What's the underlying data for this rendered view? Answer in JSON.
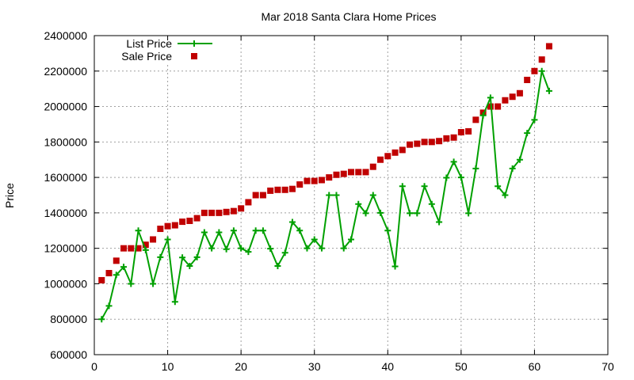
{
  "chart_data": {
    "type": "line",
    "title": "Mar 2018 Santa Clara Home Prices",
    "xlabel": "",
    "ylabel": "Price",
    "xlim": [
      0,
      70
    ],
    "ylim": [
      600000,
      2400000
    ],
    "xticks": [
      0,
      10,
      20,
      30,
      40,
      50,
      60,
      70
    ],
    "yticks": [
      600000,
      800000,
      1000000,
      1200000,
      1400000,
      1600000,
      1800000,
      2000000,
      2200000,
      2400000
    ],
    "grid": true,
    "legend_position": "top-left",
    "series": [
      {
        "name": "List Price",
        "style": "line+cross",
        "color": "#00a000",
        "x": [
          1,
          2,
          3,
          4,
          5,
          6,
          7,
          8,
          9,
          10,
          11,
          12,
          13,
          14,
          15,
          16,
          17,
          18,
          19,
          20,
          21,
          22,
          23,
          24,
          25,
          26,
          27,
          28,
          29,
          30,
          31,
          32,
          33,
          34,
          35,
          36,
          37,
          38,
          39,
          40,
          41,
          42,
          43,
          44,
          45,
          46,
          47,
          48,
          49,
          50,
          51,
          52,
          53,
          54,
          55,
          56,
          57,
          58,
          59,
          60,
          61,
          62
        ],
        "y": [
          800000,
          875000,
          1050000,
          1095000,
          1000000,
          1300000,
          1190000,
          1000000,
          1150000,
          1250000,
          898000,
          1148000,
          1100000,
          1150000,
          1290000,
          1200000,
          1290000,
          1195000,
          1300000,
          1200000,
          1180000,
          1300000,
          1300000,
          1198000,
          1100000,
          1175000,
          1348000,
          1300000,
          1200000,
          1250000,
          1200000,
          1500000,
          1500000,
          1200000,
          1250000,
          1450000,
          1398000,
          1500000,
          1400000,
          1300000,
          1098000,
          1550000,
          1398000,
          1398000,
          1550000,
          1450000,
          1348000,
          1598000,
          1688000,
          1600000,
          1398000,
          1650000,
          1950000,
          2050000,
          1550000,
          1500000,
          1650000,
          1700000,
          1850000,
          1925000,
          2200000,
          2088000
        ]
      },
      {
        "name": "Sale Price",
        "style": "filled-square",
        "color": "#c00000",
        "x": [
          1,
          2,
          3,
          4,
          5,
          6,
          7,
          8,
          9,
          10,
          11,
          12,
          13,
          14,
          15,
          16,
          17,
          18,
          19,
          20,
          21,
          22,
          23,
          24,
          25,
          26,
          27,
          28,
          29,
          30,
          31,
          32,
          33,
          34,
          35,
          36,
          37,
          38,
          39,
          40,
          41,
          42,
          43,
          44,
          45,
          46,
          47,
          48,
          49,
          50,
          51,
          52,
          53,
          54,
          55,
          56,
          57,
          58,
          59,
          60,
          61,
          62
        ],
        "y": [
          1020000,
          1060000,
          1130000,
          1200000,
          1200000,
          1200000,
          1220000,
          1250000,
          1310000,
          1325000,
          1330000,
          1350000,
          1355000,
          1370000,
          1400000,
          1400000,
          1400000,
          1405000,
          1410000,
          1425000,
          1460000,
          1500000,
          1500000,
          1525000,
          1530000,
          1530000,
          1535000,
          1560000,
          1580000,
          1580000,
          1585000,
          1600000,
          1615000,
          1620000,
          1630000,
          1630000,
          1630000,
          1660000,
          1700000,
          1720000,
          1740000,
          1755000,
          1785000,
          1790000,
          1800000,
          1800000,
          1805000,
          1820000,
          1825000,
          1855000,
          1860000,
          1925000,
          1965000,
          2000000,
          2000000,
          2035000,
          2055000,
          2075000,
          2150000,
          2200000,
          2265000,
          2340000
        ]
      }
    ]
  }
}
